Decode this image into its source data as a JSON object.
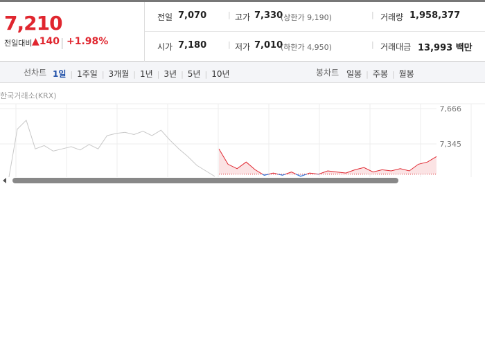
{
  "header": {
    "price": "7,210",
    "change_label": "전일대비",
    "change": "▲140",
    "change_rate": "+1.98%"
  },
  "stats": [
    {
      "label": "전일",
      "value": "7,070"
    },
    {
      "label": "고가",
      "value": "7,330",
      "note": "(상한가 9,190)"
    },
    {
      "label": "거래량",
      "value": "1,958,377"
    },
    {
      "label": "시가",
      "value": "7,180"
    },
    {
      "label": "저가",
      "value": "7,010",
      "note": "(하한가 4,950)"
    },
    {
      "label": "거래대금",
      "value": "13,993 백만"
    }
  ],
  "tabs": {
    "line": {
      "label": "선차트",
      "items": [
        "1일",
        "1주일",
        "3개월",
        "1년",
        "3년",
        "5년",
        "10년"
      ]
    },
    "candle": {
      "label": "봉차트",
      "items": [
        "일봉",
        "주봉",
        "월봉"
      ]
    }
  },
  "source": "한국거래소(KRX)",
  "chart_data": {
    "type": "line",
    "ylim": [
      7018,
      7710
    ],
    "yticks": [
      {
        "value": 7666,
        "label": "7,666"
      },
      {
        "value": 7345,
        "label": "7,345"
      }
    ],
    "baseline": 7070,
    "grid": true,
    "series": [
      {
        "color": "#c8c8c8",
        "values": [
          7010,
          7480,
          7560,
          7300,
          7330,
          7280,
          7300,
          7320,
          7290,
          7340,
          7300,
          7420,
          7440,
          7450,
          7430,
          7460,
          7420,
          7470,
          7380,
          7300,
          7230,
          7150,
          7100,
          7050
        ]
      },
      {
        "color": "#e0262f",
        "below_color": "#2a6fd6",
        "values": [
          7300,
          7160,
          7120,
          7180,
          7110,
          7060,
          7080,
          7060,
          7090,
          7050,
          7080,
          7070,
          7100,
          7090,
          7080,
          7110,
          7130,
          7090,
          7110,
          7100,
          7120,
          7100,
          7160,
          7180,
          7230
        ]
      }
    ]
  }
}
